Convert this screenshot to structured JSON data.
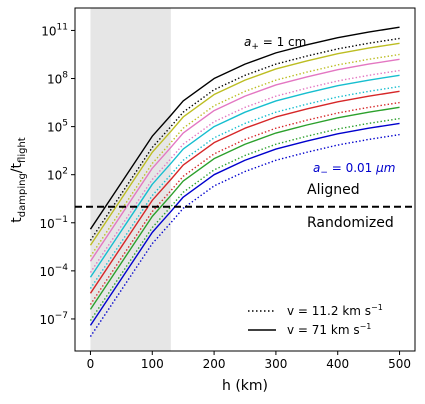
{
  "chart_data": {
    "type": "line",
    "xlabel": "h (km)",
    "ylabel_main": "t",
    "ylabel_sub_1": "damping",
    "ylabel_sep": "/t",
    "ylabel_sub_2": "flight",
    "xlim": [
      -25,
      525
    ],
    "ylim_log10": [
      -9,
      12.4
    ],
    "xscale": "linear",
    "yscale": "log",
    "grid": false,
    "x_ticks": [
      0,
      100,
      200,
      300,
      400,
      500
    ],
    "x_tick_labels": [
      "0",
      "100",
      "200",
      "300",
      "400",
      "500"
    ],
    "y_ticks_log10": [
      -7,
      -4,
      -1,
      2,
      5,
      8,
      11
    ],
    "y_tick_labels": [
      {
        "base": "10",
        "exp": "−7"
      },
      {
        "base": "10",
        "exp": "−4"
      },
      {
        "base": "10",
        "exp": "−1"
      },
      {
        "base": "10",
        "exp": "2"
      },
      {
        "base": "10",
        "exp": "5"
      },
      {
        "base": "10",
        "exp": "8"
      },
      {
        "base": "10",
        "exp": "11"
      }
    ],
    "shaded_region": {
      "x0": 0,
      "x1": 130,
      "color": "#e6e6e6"
    },
    "threshold": {
      "y": 1,
      "style": "dashed",
      "color": "#000000"
    },
    "x": [
      0,
      50,
      100,
      130,
      150,
      200,
      250,
      300,
      350,
      400,
      450,
      500
    ],
    "series": [
      {
        "color": "#000000",
        "style": "solid",
        "log10_values": [
          -1.4,
          1.5,
          4.4,
          5.7,
          6.6,
          8.0,
          8.9,
          9.6,
          10.1,
          10.55,
          10.9,
          11.2
        ]
      },
      {
        "color": "#000000",
        "style": "dotted",
        "log10_values": [
          -2.1,
          0.8,
          3.7,
          5.0,
          5.9,
          7.3,
          8.2,
          8.9,
          9.4,
          9.85,
          10.2,
          10.5
        ]
      },
      {
        "color": "#bcbd22",
        "style": "solid",
        "log10_values": [
          -2.4,
          0.5,
          3.4,
          4.7,
          5.6,
          7.0,
          7.9,
          8.6,
          9.1,
          9.55,
          9.9,
          10.2
        ]
      },
      {
        "color": "#bcbd22",
        "style": "dotted",
        "log10_values": [
          -3.1,
          -0.2,
          2.7,
          4.0,
          4.9,
          6.3,
          7.2,
          7.9,
          8.4,
          8.85,
          9.2,
          9.5
        ]
      },
      {
        "color": "#e377c2",
        "style": "solid",
        "log10_values": [
          -3.4,
          -0.5,
          2.4,
          3.7,
          4.6,
          6.0,
          6.9,
          7.6,
          8.1,
          8.55,
          8.9,
          9.2
        ]
      },
      {
        "color": "#e377c2",
        "style": "dotted",
        "log10_values": [
          -4.1,
          -1.2,
          1.7,
          3.0,
          3.9,
          5.3,
          6.2,
          6.9,
          7.4,
          7.85,
          8.2,
          8.5
        ]
      },
      {
        "color": "#17becf",
        "style": "solid",
        "log10_values": [
          -4.4,
          -1.5,
          1.4,
          2.7,
          3.6,
          5.0,
          5.9,
          6.6,
          7.1,
          7.55,
          7.9,
          8.2
        ]
      },
      {
        "color": "#17becf",
        "style": "dotted",
        "log10_values": [
          -5.1,
          -2.2,
          0.7,
          2.0,
          2.9,
          4.3,
          5.2,
          5.9,
          6.4,
          6.85,
          7.2,
          7.5
        ]
      },
      {
        "color": "#d62728",
        "style": "solid",
        "log10_values": [
          -5.4,
          -2.5,
          0.4,
          1.7,
          2.6,
          4.0,
          4.9,
          5.6,
          6.1,
          6.55,
          6.9,
          7.2
        ]
      },
      {
        "color": "#d62728",
        "style": "dotted",
        "log10_values": [
          -6.1,
          -3.2,
          -0.3,
          1.0,
          1.9,
          3.3,
          4.2,
          4.9,
          5.4,
          5.85,
          6.2,
          6.5
        ]
      },
      {
        "color": "#2ca02c",
        "style": "solid",
        "log10_values": [
          -6.4,
          -3.5,
          -0.6,
          0.7,
          1.6,
          3.0,
          3.9,
          4.6,
          5.1,
          5.55,
          5.9,
          6.2
        ]
      },
      {
        "color": "#2ca02c",
        "style": "dotted",
        "log10_values": [
          -7.1,
          -4.2,
          -1.3,
          0.0,
          0.9,
          2.3,
          3.2,
          3.9,
          4.4,
          4.85,
          5.2,
          5.5
        ]
      },
      {
        "color": "#0000cd",
        "style": "solid",
        "log10_values": [
          -7.4,
          -4.5,
          -1.6,
          -0.3,
          0.6,
          2.0,
          2.9,
          3.6,
          4.1,
          4.55,
          4.9,
          5.2
        ]
      },
      {
        "color": "#0000cd",
        "style": "dotted",
        "log10_values": [
          -8.1,
          -5.2,
          -2.3,
          -1.0,
          -0.1,
          1.3,
          2.2,
          2.9,
          3.4,
          3.85,
          4.2,
          4.5
        ]
      }
    ],
    "annotations": {
      "top_var": "a",
      "top_sub": "+",
      "top_eq": " = 1 cm",
      "top_color": "#000000",
      "bottom_var": "a",
      "bottom_sub": "−",
      "bottom_eq": " = 0.01 ",
      "bottom_unit": "μm",
      "bottom_color": "#0000cd"
    },
    "region_labels": {
      "above": "Aligned",
      "below": "Randomized"
    },
    "legend": {
      "position": "lower-right",
      "entries": [
        {
          "style": "dotted",
          "text": "v = 11.2 km s",
          "sup": "−1"
        },
        {
          "style": "solid",
          "text": "v = 71 km s",
          "sup": "−1"
        }
      ]
    }
  }
}
